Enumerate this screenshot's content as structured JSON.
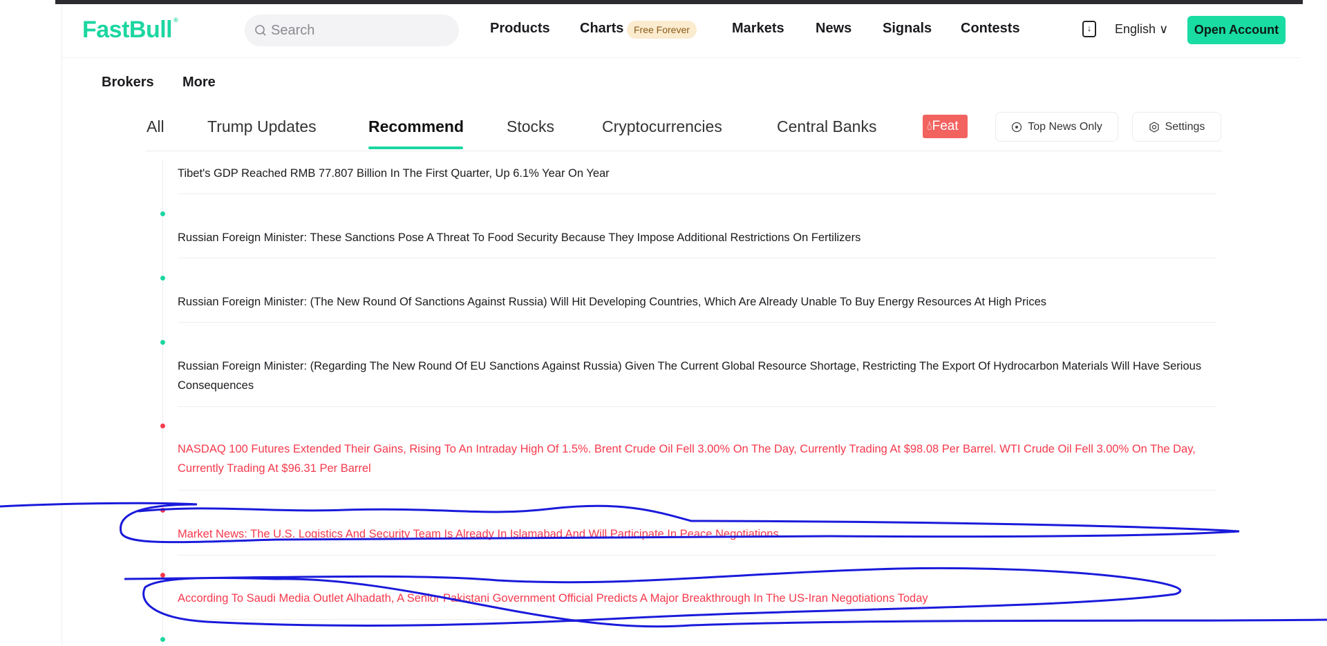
{
  "header": {
    "logo": "FastBull",
    "logo_mark": "®",
    "search_placeholder": "Search",
    "nav": [
      {
        "label": "Products"
      },
      {
        "label": "Charts"
      },
      {
        "label": "Markets"
      },
      {
        "label": "News"
      },
      {
        "label": "Signals"
      },
      {
        "label": "Contests"
      }
    ],
    "charts_badge": "Free Forever",
    "language": "English",
    "open_account": "Open Account"
  },
  "subnav": [
    {
      "label": "Brokers"
    },
    {
      "label": "More"
    }
  ],
  "tabs": [
    {
      "label": "All"
    },
    {
      "label": "Trump Updates"
    },
    {
      "label": "Recommend",
      "active": true
    },
    {
      "label": "Stocks"
    },
    {
      "label": "Cryptocurrencies"
    },
    {
      "label": "Central Banks"
    }
  ],
  "featured_label": "Feat",
  "top_news_only": "Top News Only",
  "settings": "Settings",
  "colors": {
    "accent": "#1bd6a0",
    "important": "#f5394c",
    "featured": "#f26360",
    "annotation": "#1a1adb"
  },
  "news": [
    {
      "text": "Tibet's GDP Reached RMB 77.807 Billion In The First Quarter, Up 6.1% Year On Year",
      "important": false
    },
    {
      "text": "Russian Foreign Minister: These Sanctions Pose A Threat To Food Security Because They Impose Additional Restrictions On Fertilizers",
      "important": false
    },
    {
      "text": "Russian Foreign Minister: (The New Round Of Sanctions Against Russia) Will Hit Developing Countries, Which Are Already Unable To Buy Energy Resources At High Prices",
      "important": false
    },
    {
      "text": "Russian Foreign Minister: (Regarding The New Round Of EU Sanctions Against Russia) Given The Current Global Resource Shortage, Restricting The Export Of Hydrocarbon Materials Will Have Serious Consequences",
      "important": false
    },
    {
      "text": "NASDAQ 100 Futures Extended Their Gains, Rising To An Intraday High Of 1.5%. Brent Crude Oil Fell 3.00% On The Day, Currently Trading At $98.08 Per Barrel. WTI Crude Oil Fell 3.00% On The Day, Currently Trading At $96.31 Per Barrel",
      "important": true
    },
    {
      "text": "Market News: The U.S. Logistics And Security Team Is Already In Islamabad And Will Participate In Peace Negotiations",
      "important": true
    },
    {
      "text": "According To Saudi Media Outlet Alhadath, A Senior Pakistani Government Official Predicts A Major Breakthrough In The US-Iran Negotiations Today",
      "important": true
    }
  ]
}
